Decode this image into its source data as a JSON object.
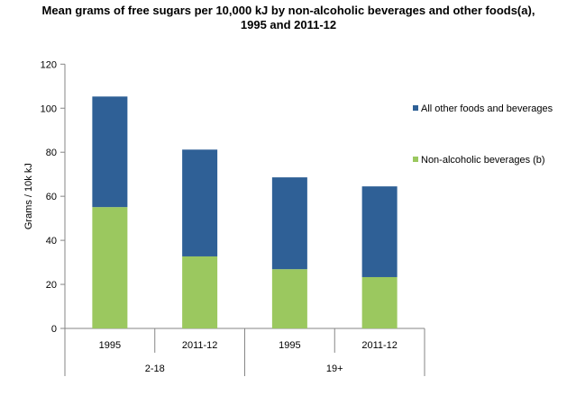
{
  "chart_data": {
    "type": "bar",
    "stacked": true,
    "title": "Mean grams of free sugars per 10,000 kJ by non-alcoholic beverages and other foods(a), 1995 and 2011-12",
    "ylabel": "Grams / 10k kJ",
    "xlabel": "",
    "ylim": [
      0,
      120
    ],
    "yticks": [
      0,
      20,
      40,
      60,
      80,
      100,
      120
    ],
    "categories": [
      "1995",
      "2011-12",
      "1995",
      "2011-12"
    ],
    "groups": [
      {
        "label": "2-18",
        "span": 2
      },
      {
        "label": "19+",
        "span": 2
      }
    ],
    "grid": false,
    "legend_position": "right",
    "series": [
      {
        "name": "Non-alcoholic beverages (b)",
        "color": "#9BC85F",
        "values": [
          55.1,
          32.7,
          26.9,
          23.3
        ]
      },
      {
        "name": "All other foods and beverages",
        "color": "#2F6096",
        "values": [
          50.2,
          48.5,
          41.7,
          41.2
        ]
      }
    ]
  }
}
